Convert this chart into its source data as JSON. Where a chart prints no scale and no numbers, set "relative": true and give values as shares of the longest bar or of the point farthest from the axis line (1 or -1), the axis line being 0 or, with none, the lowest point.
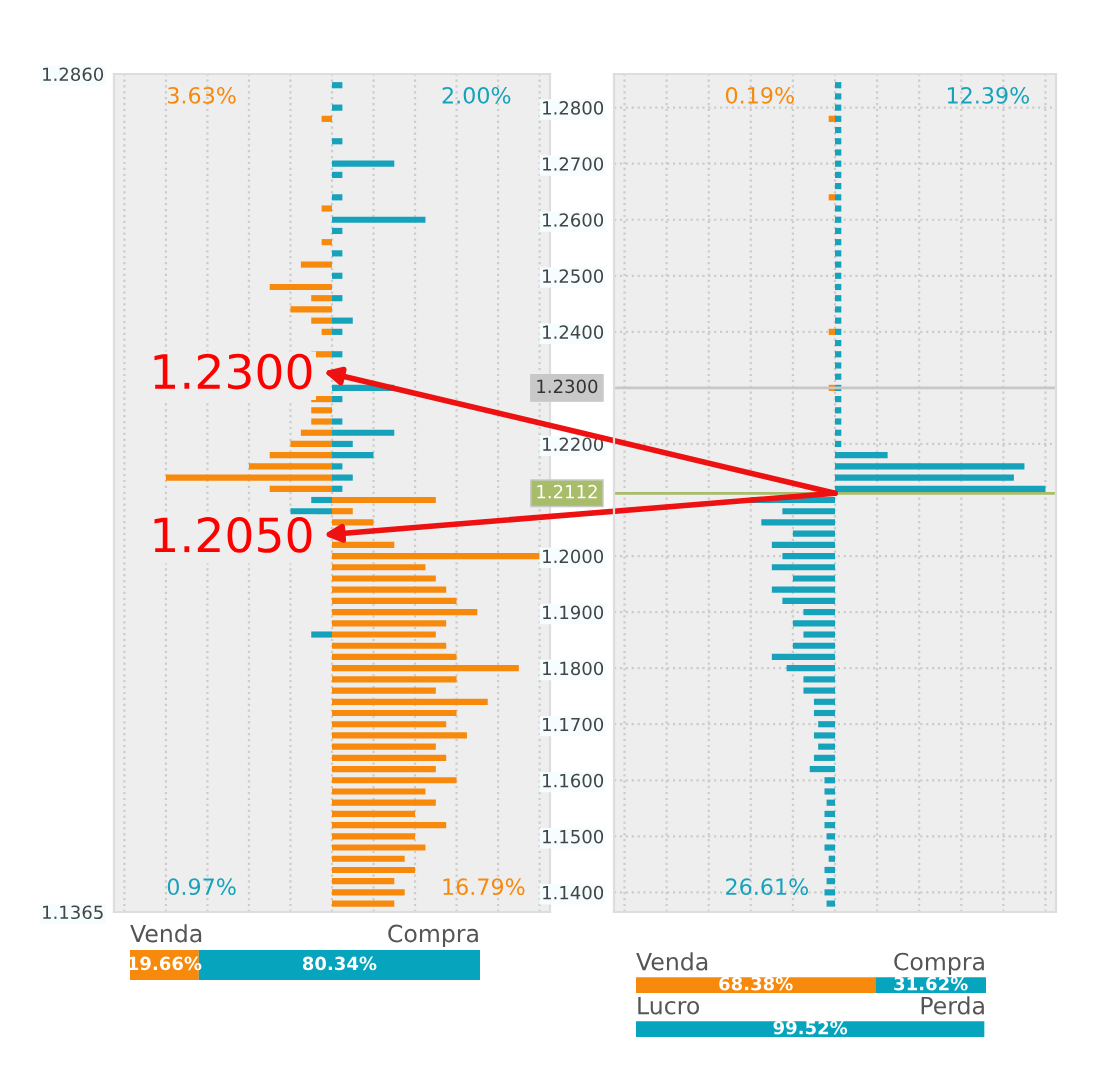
{
  "chart_data": [
    {
      "type": "bar",
      "orientation": "horizontal",
      "relative": true,
      "ylim": [
        1.1365,
        1.286
      ],
      "yticks": [
        {
          "value": 1.1365,
          "label": "1.1365"
        },
        {
          "value": 1.286,
          "label": "1.2860"
        }
      ],
      "tick_labels": "y",
      "grid": true,
      "x": [
        1.138,
        1.14,
        1.142,
        1.144,
        1.146,
        1.148,
        1.15,
        1.152,
        1.154,
        1.156,
        1.158,
        1.16,
        1.162,
        1.164,
        1.166,
        1.168,
        1.17,
        1.172,
        1.174,
        1.176,
        1.178,
        1.18,
        1.182,
        1.184,
        1.186,
        1.188,
        1.19,
        1.192,
        1.194,
        1.196,
        1.198,
        1.2,
        1.202,
        1.204,
        1.206,
        1.208,
        1.21,
        1.212,
        1.214,
        1.216,
        1.218,
        1.22,
        1.222,
        1.224,
        1.226,
        1.228,
        1.23,
        1.232,
        1.234,
        1.236,
        1.238,
        1.24,
        1.242,
        1.244,
        1.246,
        1.248,
        1.25,
        1.252,
        1.254,
        1.256,
        1.258,
        1.26,
        1.262,
        1.264,
        1.266,
        1.268,
        1.27,
        1.272,
        1.274,
        1.276,
        1.278,
        1.28,
        1.282,
        1.284
      ],
      "series": [
        {
          "color": "#f7890c",
          "values": [
            0.3,
            0.35,
            0.3,
            0.4,
            0.35,
            0.45,
            0.4,
            0.55,
            0.4,
            0.5,
            0.45,
            0.6,
            0.5,
            0.55,
            0.5,
            0.65,
            0.55,
            0.6,
            0.75,
            0.5,
            0.6,
            0.9,
            0.6,
            0.55,
            0.5,
            0.55,
            0.7,
            0.6,
            0.55,
            0.5,
            0.45,
            1.0,
            0.3,
            null,
            0.2,
            0.1,
            0.5,
            -0.3,
            -0.8,
            -0.4,
            -0.3,
            -0.2,
            -0.15,
            -0.1,
            -0.1,
            -0.1,
            null,
            null,
            null,
            -0.1,
            null,
            -0.05,
            -0.1,
            -0.2,
            -0.1,
            -0.3,
            null,
            -0.15,
            null,
            -0.05,
            null,
            null,
            -0.05,
            null,
            null,
            null,
            null,
            null,
            null,
            null,
            -0.05,
            null,
            null,
            null
          ]
        },
        {
          "color": "#17a2bb",
          "values": [
            null,
            null,
            null,
            null,
            null,
            null,
            null,
            null,
            null,
            null,
            null,
            null,
            null,
            null,
            null,
            null,
            null,
            null,
            null,
            null,
            null,
            null,
            null,
            null,
            -0.1,
            null,
            null,
            null,
            null,
            null,
            null,
            null,
            null,
            null,
            null,
            -0.2,
            -0.1,
            0.05,
            0.1,
            0.05,
            0.2,
            0.1,
            0.3,
            0.05,
            null,
            0.05,
            0.3,
            null,
            null,
            0.05,
            null,
            0.05,
            0.1,
            null,
            0.05,
            null,
            0.05,
            null,
            0.05,
            null,
            0.05,
            0.45,
            null,
            0.05,
            null,
            0.05,
            0.3,
            null,
            0.05,
            null,
            null,
            0.05,
            null,
            0.05
          ]
        }
      ],
      "annotations": [
        "3.63%",
        "2.00%",
        "0.97%",
        "16.79%",
        "1.2300",
        "1.2050"
      ]
    },
    {
      "type": "bar",
      "orientation": "horizontal",
      "relative": true,
      "ylim": [
        1.1365,
        1.286
      ],
      "yticks": [
        {
          "value": 1.14,
          "label": "1.1400"
        },
        {
          "value": 1.15,
          "label": "1.1500"
        },
        {
          "value": 1.16,
          "label": "1.1600"
        },
        {
          "value": 1.17,
          "label": "1.1700"
        },
        {
          "value": 1.18,
          "label": "1.1800"
        },
        {
          "value": 1.19,
          "label": "1.1900"
        },
        {
          "value": 1.2,
          "label": "1.2000"
        },
        {
          "value": 1.22,
          "label": "1.2200"
        },
        {
          "value": 1.24,
          "label": "1.2400"
        },
        {
          "value": 1.25,
          "label": "1.2500"
        },
        {
          "value": 1.26,
          "label": "1.2600"
        },
        {
          "value": 1.27,
          "label": "1.2700"
        },
        {
          "value": 1.28,
          "label": "1.2800"
        }
      ],
      "tick_labels": "y",
      "grid": true,
      "x": [
        1.138,
        1.14,
        1.142,
        1.144,
        1.146,
        1.148,
        1.15,
        1.152,
        1.154,
        1.156,
        1.158,
        1.16,
        1.162,
        1.164,
        1.166,
        1.168,
        1.17,
        1.172,
        1.174,
        1.176,
        1.178,
        1.18,
        1.182,
        1.184,
        1.186,
        1.188,
        1.19,
        1.192,
        1.194,
        1.196,
        1.198,
        1.2,
        1.202,
        1.204,
        1.206,
        1.208,
        1.21,
        1.212,
        1.214,
        1.216,
        1.218,
        1.22,
        1.222,
        1.224,
        1.226,
        1.228,
        1.23,
        1.232,
        1.234,
        1.236,
        1.238,
        1.24,
        1.242,
        1.244,
        1.246,
        1.248,
        1.25,
        1.252,
        1.254,
        1.256,
        1.258,
        1.26,
        1.262,
        1.264,
        1.266,
        1.268,
        1.27,
        1.272,
        1.274,
        1.276,
        1.278,
        1.28,
        1.282,
        1.284
      ],
      "series": [
        {
          "color": "#f7890c",
          "values": [
            null,
            null,
            null,
            null,
            null,
            null,
            null,
            null,
            null,
            null,
            null,
            null,
            null,
            null,
            null,
            null,
            null,
            null,
            null,
            null,
            null,
            null,
            null,
            null,
            null,
            null,
            null,
            null,
            null,
            null,
            null,
            null,
            null,
            null,
            null,
            null,
            null,
            null,
            null,
            null,
            null,
            null,
            null,
            null,
            null,
            null,
            -0.03,
            null,
            null,
            null,
            null,
            -0.03,
            null,
            null,
            null,
            null,
            null,
            null,
            null,
            null,
            null,
            null,
            null,
            -0.03,
            null,
            null,
            null,
            null,
            null,
            null,
            -0.03,
            null,
            null,
            null
          ]
        },
        {
          "color": "#17a2bb",
          "values": [
            -0.04,
            -0.05,
            -0.04,
            -0.05,
            -0.03,
            -0.05,
            -0.04,
            -0.05,
            -0.05,
            -0.04,
            -0.05,
            -0.05,
            -0.12,
            -0.1,
            -0.08,
            -0.1,
            -0.08,
            -0.1,
            -0.1,
            -0.15,
            -0.15,
            -0.23,
            -0.3,
            -0.2,
            -0.15,
            -0.2,
            -0.15,
            -0.25,
            -0.3,
            -0.2,
            -0.3,
            -0.25,
            -0.3,
            -0.2,
            -0.35,
            -0.25,
            -0.4,
            1.0,
            0.85,
            0.9,
            0.25,
            0.03,
            0.03,
            0.03,
            0.03,
            0.03,
            0.03,
            0.03,
            0.03,
            0.03,
            0.03,
            0.03,
            0.03,
            0.03,
            0.03,
            0.03,
            0.03,
            0.03,
            0.03,
            0.03,
            0.03,
            0.03,
            0.03,
            0.03,
            0.03,
            0.03,
            0.03,
            0.03,
            0.03,
            0.03,
            0.03,
            0.03,
            0.03,
            0.03
          ]
        }
      ],
      "ref_lines": [
        {
          "axis": "y",
          "value": 1.23,
          "label": "1.2300",
          "color": "#c8c8c8"
        },
        {
          "axis": "y",
          "value": 1.2112,
          "label": "1.2112",
          "color": "#a8bd6a"
        }
      ],
      "annotations": [
        "0.19%",
        "12.39%",
        "26.61%"
      ]
    },
    {
      "type": "bar",
      "orientation": "horizontal",
      "stacked": true,
      "tick_labels": false,
      "categories": [
        null
      ],
      "series": [
        {
          "name": "Venda",
          "color": "#f7890c",
          "values": [
            19.66
          ],
          "value_labels": [
            "19.66%"
          ]
        },
        {
          "name": "Compra",
          "color": "#07a4bd",
          "values": [
            80.34
          ],
          "value_labels": [
            "80.34%"
          ]
        }
      ]
    },
    {
      "type": "bar",
      "orientation": "horizontal",
      "stacked": true,
      "tick_labels": false,
      "categories": [
        null,
        null
      ],
      "annotations": [
        "Venda",
        "Compra",
        "Lucro",
        "Perda"
      ],
      "series": [
        {
          "color": "#f7890c",
          "values": [
            68.38,
            null
          ],
          "value_labels": [
            "68.38%",
            null
          ]
        },
        {
          "color": "#07a4bd",
          "values": [
            31.62,
            99.52
          ],
          "value_labels": [
            "31.62%",
            "99.52%"
          ]
        }
      ]
    }
  ]
}
